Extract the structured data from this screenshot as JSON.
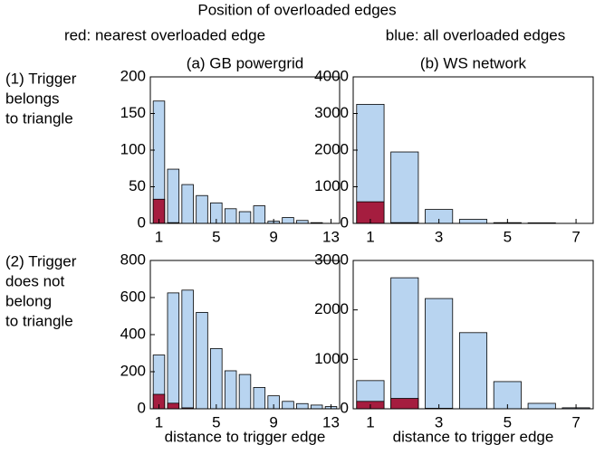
{
  "figure": {
    "title": "Position of overloaded edges",
    "legend": [
      {
        "text": "red: nearest overloaded edge",
        "color": "#a51d3f"
      },
      {
        "text": "blue: all overloaded edges",
        "color": "#5a78b4"
      }
    ],
    "row_labels": [
      [
        "(1) Trigger",
        "belongs",
        "to triangle"
      ],
      [
        "(2) Trigger",
        "does not",
        "belong",
        "to triangle"
      ]
    ]
  },
  "chart_data": [
    {
      "type": "bar",
      "title": "(a) GB powergrid",
      "x": [
        1,
        2,
        3,
        4,
        5,
        6,
        7,
        8,
        9,
        10,
        11,
        12,
        13
      ],
      "xlim": [
        0.4,
        13.6
      ],
      "xticks": [
        1,
        5,
        9,
        13
      ],
      "ylim": [
        0,
        200
      ],
      "yticks": [
        0,
        50,
        100,
        150,
        200
      ],
      "series": [
        {
          "color": "#b8d4f0",
          "values": [
            167,
            74,
            53,
            38,
            28,
            20,
            16,
            24,
            3,
            8,
            4,
            1,
            0
          ]
        },
        {
          "color": "#a51d3f",
          "values": [
            33,
            1,
            0,
            0,
            0,
            0,
            0,
            0,
            0,
            0,
            0,
            0,
            0
          ]
        }
      ]
    },
    {
      "type": "bar",
      "title": "(b) WS network",
      "x": [
        1,
        2,
        3,
        4,
        5,
        6,
        7
      ],
      "xlim": [
        0.5,
        7.5
      ],
      "xticks": [
        1,
        3,
        5,
        7
      ],
      "ylim": [
        0,
        4000
      ],
      "yticks": [
        0,
        1000,
        2000,
        3000,
        4000
      ],
      "series": [
        {
          "color": "#b8d4f0",
          "values": [
            3250,
            1950,
            380,
            110,
            20,
            15,
            0
          ]
        },
        {
          "color": "#a51d3f",
          "values": [
            590,
            20,
            0,
            0,
            0,
            0,
            0
          ]
        }
      ]
    },
    {
      "type": "bar",
      "xlabel": "distance to trigger edge",
      "x": [
        1,
        2,
        3,
        4,
        5,
        6,
        7,
        8,
        9,
        10,
        11,
        12,
        13
      ],
      "xlim": [
        0.4,
        13.6
      ],
      "xticks": [
        1,
        5,
        9,
        13
      ],
      "ylim": [
        0,
        800
      ],
      "yticks": [
        0,
        200,
        400,
        600,
        800
      ],
      "series": [
        {
          "color": "#b8d4f0",
          "values": [
            290,
            625,
            640,
            520,
            325,
            205,
            185,
            115,
            70,
            40,
            28,
            20,
            12
          ]
        },
        {
          "color": "#a51d3f",
          "values": [
            78,
            30,
            5,
            0,
            0,
            0,
            0,
            0,
            0,
            0,
            0,
            0,
            0
          ]
        }
      ]
    },
    {
      "type": "bar",
      "xlabel": "distance to trigger edge",
      "x": [
        1,
        2,
        3,
        4,
        5,
        6,
        7
      ],
      "xlim": [
        0.5,
        7.5
      ],
      "xticks": [
        1,
        3,
        5,
        7
      ],
      "ylim": [
        0,
        3000
      ],
      "yticks": [
        0,
        1000,
        2000,
        3000
      ],
      "series": [
        {
          "color": "#b8d4f0",
          "values": [
            570,
            2650,
            2230,
            1540,
            550,
            110,
            20
          ]
        },
        {
          "color": "#a51d3f",
          "values": [
            150,
            210,
            10,
            0,
            0,
            0,
            0
          ]
        }
      ]
    }
  ]
}
